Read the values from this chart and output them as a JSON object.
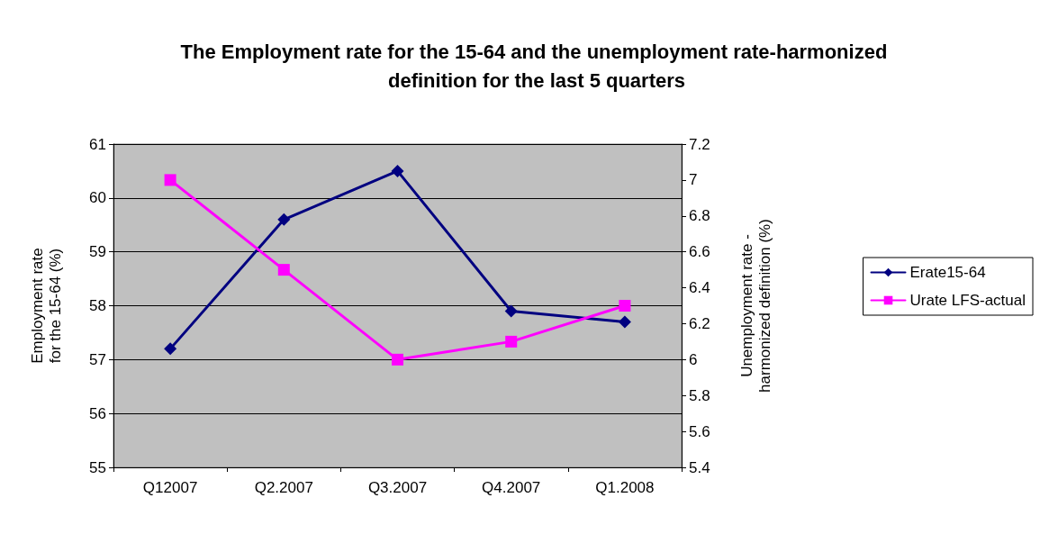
{
  "chart_data": {
    "type": "line",
    "title": "The Employment rate for the 15-64 and the unemployment rate-harmonized definition for the last 5 quarters",
    "categories": [
      "Q12007",
      "Q2.2007",
      "Q3.2007",
      "Q4.2007",
      "Q1.2008"
    ],
    "series": [
      {
        "name": "Erate15-64",
        "color": "#000080",
        "marker": "diamond",
        "values": [
          57.2,
          59.6,
          60.5,
          57.9,
          57.7
        ]
      },
      {
        "name": "Urate LFS-actual",
        "color": "#ff00ff",
        "marker": "square",
        "axis": "y2",
        "values": [
          7.0,
          6.5,
          6.0,
          6.1,
          6.3
        ]
      }
    ],
    "ylabel": "Employment rate for the 15-64 (%)",
    "y2label": "Unemployment rate - harmonized definition (%)",
    "ylim": [
      55,
      61
    ],
    "yticks": [
      55,
      56,
      57,
      58,
      59,
      60,
      61
    ],
    "y2lim": [
      5.4,
      7.2
    ],
    "y2ticks": [
      5.4,
      5.6,
      5.8,
      6,
      6.2,
      6.4,
      6.6,
      6.8,
      7,
      7.2
    ],
    "grid": "y",
    "legend": "right",
    "line_style": "solid"
  }
}
